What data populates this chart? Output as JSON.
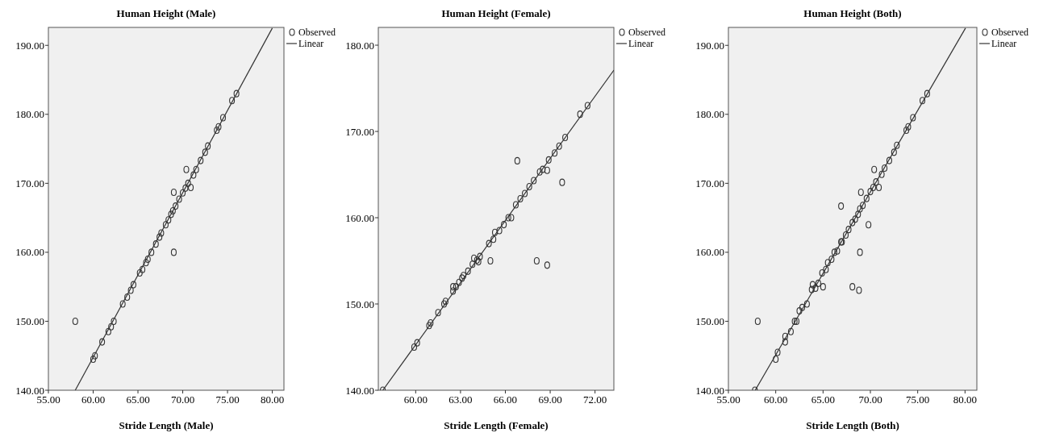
{
  "chart_data": [
    {
      "type": "scatter",
      "title": "Human Height (Male)",
      "xlabel": "Stride Length (Male)",
      "legend": "top right",
      "grid": false,
      "xlim": [
        55,
        81.3
      ],
      "ylim": [
        140,
        192.6
      ],
      "xticks": [
        {
          "value": 55,
          "label": "55.00"
        },
        {
          "value": 60,
          "label": "60.00"
        },
        {
          "value": 65,
          "label": "65.00"
        },
        {
          "value": 70,
          "label": "70.00"
        },
        {
          "value": 75,
          "label": "75.00"
        },
        {
          "value": 80,
          "label": "80.00"
        }
      ],
      "yticks": [
        {
          "value": 140,
          "label": "140.00"
        },
        {
          "value": 150,
          "label": "150.00"
        },
        {
          "value": 160,
          "label": "160.00"
        },
        {
          "value": 170,
          "label": "170.00"
        },
        {
          "value": 180,
          "label": "180.00"
        },
        {
          "value": 190,
          "label": "190.00"
        }
      ],
      "series": [
        {
          "name": "Observed",
          "marker": "circle",
          "color": "#333333",
          "x": [
            58.0,
            60.0,
            60.2,
            61.0,
            61.7,
            62.0,
            62.3,
            63.3,
            63.8,
            64.2,
            64.5,
            65.2,
            65.5,
            65.9,
            66.1,
            66.5,
            67.0,
            67.4,
            67.6,
            68.1,
            68.4,
            68.7,
            68.9,
            69.2,
            69.6,
            70.0,
            70.3,
            70.6,
            70.4,
            70.9,
            69.0,
            69.0,
            71.2,
            71.5,
            72.0,
            72.5,
            72.8,
            73.8,
            74.0,
            74.5,
            75.5,
            76.0
          ],
          "values": [
            150,
            144.5,
            145,
            147,
            148.5,
            149.2,
            150,
            152.5,
            153.5,
            154.5,
            155.3,
            157,
            157.5,
            158.5,
            159,
            160,
            161.2,
            162.2,
            162.8,
            164,
            164.7,
            165.5,
            166,
            166.7,
            167.7,
            168.6,
            169.3,
            170,
            172,
            169.4,
            168.7,
            160,
            171.2,
            172,
            173.3,
            174.5,
            175.4,
            177.7,
            178.2,
            179.5,
            182,
            183
          ]
        },
        {
          "name": "Linear",
          "type": "line",
          "color": "#333333",
          "x": [
            58.0,
            80.0
          ],
          "values": [
            140,
            192.5
          ]
        }
      ]
    },
    {
      "type": "scatter",
      "title": "Human Height (Female)",
      "xlabel": "Stride Length (Female)",
      "legend": "top right",
      "grid": false,
      "xlim": [
        57.5,
        73.26
      ],
      "ylim": [
        140,
        182.06
      ],
      "xticks": [
        {
          "value": 60,
          "label": "60.00"
        },
        {
          "value": 63,
          "label": "63.00"
        },
        {
          "value": 66,
          "label": "66.00"
        },
        {
          "value": 69,
          "label": "69.00"
        },
        {
          "value": 72,
          "label": "72.00"
        }
      ],
      "yticks": [
        {
          "value": 140,
          "label": "140.00"
        },
        {
          "value": 150,
          "label": "150.00"
        },
        {
          "value": 160,
          "label": "160.00"
        },
        {
          "value": 170,
          "label": "170.00"
        },
        {
          "value": 180,
          "label": "180.00"
        }
      ],
      "series": [
        {
          "name": "Observed",
          "marker": "circle",
          "color": "#333333",
          "x": [
            57.8,
            59.9,
            60.1,
            60.9,
            61.0,
            61.5,
            61.9,
            62.0,
            62.5,
            62.5,
            62.7,
            62.9,
            63.1,
            63.2,
            63.5,
            63.8,
            63.9,
            64.1,
            64.2,
            64.3,
            65.0,
            64.9,
            65.2,
            65.3,
            65.6,
            65.9,
            66.2,
            66.4,
            66.7,
            67.0,
            67.3,
            67.6,
            67.9,
            68.3,
            68.5,
            68.8,
            68.9,
            69.3,
            69.6,
            70.0,
            66.8,
            69.8,
            68.1,
            68.8,
            71.0,
            71.5
          ],
          "values": [
            140,
            145,
            145.5,
            147.5,
            147.8,
            149,
            150,
            150.3,
            151.5,
            152,
            152,
            152.5,
            153,
            153.3,
            153.8,
            154.6,
            155.3,
            155.1,
            154.9,
            155.5,
            155,
            157,
            157.5,
            158.3,
            158.5,
            159.2,
            160,
            160,
            161.5,
            162.2,
            162.8,
            163.6,
            164.3,
            165.3,
            165.6,
            165.5,
            166.7,
            167.5,
            168.3,
            169.3,
            166.6,
            164.1,
            155,
            154.5,
            172,
            173
          ]
        },
        {
          "name": "Linear",
          "type": "line",
          "color": "#333333",
          "x": [
            57.8,
            73.26
          ],
          "values": [
            140,
            177.1
          ]
        }
      ]
    },
    {
      "type": "scatter",
      "title": "Human Height (Both)",
      "xlabel": "Stride Length (Both)",
      "legend": "top right",
      "grid": false,
      "xlim": [
        55,
        81.25
      ],
      "ylim": [
        140,
        192.6
      ],
      "xticks": [
        {
          "value": 55,
          "label": "55.00"
        },
        {
          "value": 60,
          "label": "60.00"
        },
        {
          "value": 65,
          "label": "65.00"
        },
        {
          "value": 70,
          "label": "70.00"
        },
        {
          "value": 75,
          "label": "75.00"
        },
        {
          "value": 80,
          "label": "80.00"
        }
      ],
      "yticks": [
        {
          "value": 140,
          "label": "140.00"
        },
        {
          "value": 150,
          "label": "150.00"
        },
        {
          "value": 160,
          "label": "160.00"
        },
        {
          "value": 170,
          "label": "170.00"
        },
        {
          "value": 180,
          "label": "180.00"
        },
        {
          "value": 190,
          "label": "190.00"
        }
      ],
      "series": [
        {
          "name": "Observed",
          "marker": "circle",
          "color": "#333333",
          "x": [
            58.1,
            57.8,
            60.0,
            60.2,
            61.0,
            61.0,
            61.6,
            62.0,
            62.2,
            62.5,
            62.8,
            63.3,
            63.8,
            63.9,
            64.2,
            64.5,
            65.0,
            64.9,
            65.3,
            65.5,
            65.9,
            66.2,
            66.5,
            66.9,
            67.0,
            67.4,
            67.7,
            68.1,
            68.4,
            68.7,
            68.9,
            69.2,
            69.6,
            70.0,
            70.3,
            70.6,
            70.4,
            70.9,
            69.0,
            68.9,
            66.9,
            69.8,
            68.1,
            68.8,
            71.2,
            71.5,
            72.0,
            72.5,
            72.8,
            73.8,
            74.0,
            74.5,
            75.5,
            76.0
          ],
          "values": [
            150,
            140,
            144.5,
            145.5,
            147,
            147.8,
            148.5,
            150,
            150,
            151.5,
            152,
            152.5,
            154.6,
            155.3,
            154.8,
            155.5,
            155,
            157,
            157.5,
            158.5,
            159,
            160,
            160.2,
            161.5,
            161.5,
            162.5,
            163.3,
            164.3,
            164.8,
            165.5,
            166.3,
            166.8,
            167.8,
            168.8,
            169.4,
            170.2,
            172,
            169.4,
            168.7,
            160,
            166.7,
            164,
            155,
            154.5,
            171.3,
            172.2,
            173.3,
            174.5,
            175.5,
            177.7,
            178.2,
            179.5,
            182,
            183
          ]
        },
        {
          "name": "Linear",
          "type": "line",
          "color": "#333333",
          "x": [
            57.83,
            80.05
          ],
          "values": [
            140,
            192.5
          ]
        }
      ]
    }
  ]
}
